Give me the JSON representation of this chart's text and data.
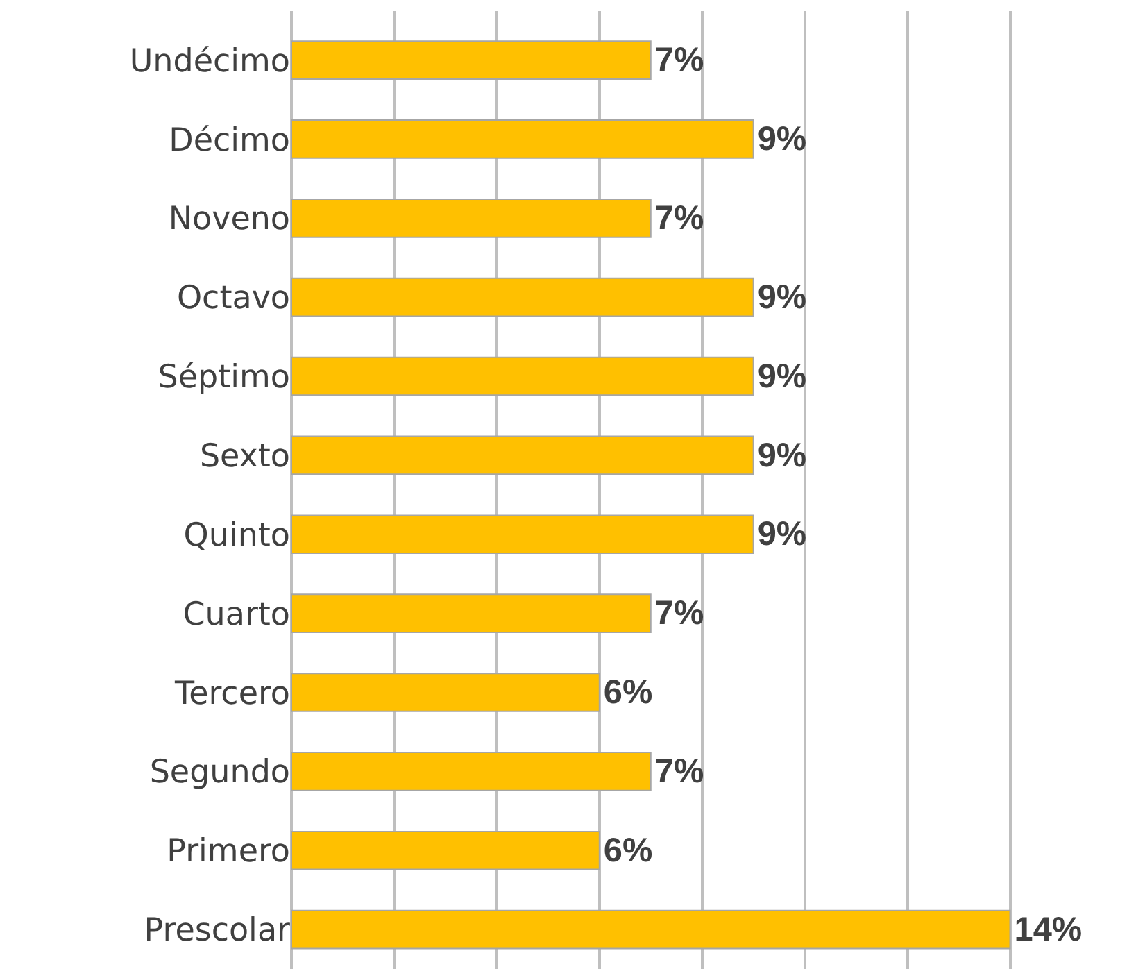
{
  "chart_data": {
    "type": "bar",
    "orientation": "horizontal",
    "categories": [
      "Undécimo",
      "Décimo",
      "Noveno",
      "Octavo",
      "Séptimo",
      "Sexto",
      "Quinto",
      "Cuarto",
      "Tercero",
      "Segundo",
      "Primero",
      "Prescolar"
    ],
    "values": [
      7,
      9,
      7,
      9,
      9,
      9,
      9,
      7,
      6,
      7,
      6,
      14
    ],
    "value_labels": [
      "7%",
      "9%",
      "7%",
      "9%",
      "9%",
      "9%",
      "9%",
      "7%",
      "6%",
      "7%",
      "6%",
      "14%"
    ],
    "color": "#ffc000",
    "tick_labels": "y",
    "grid": "x",
    "legend": false
  }
}
